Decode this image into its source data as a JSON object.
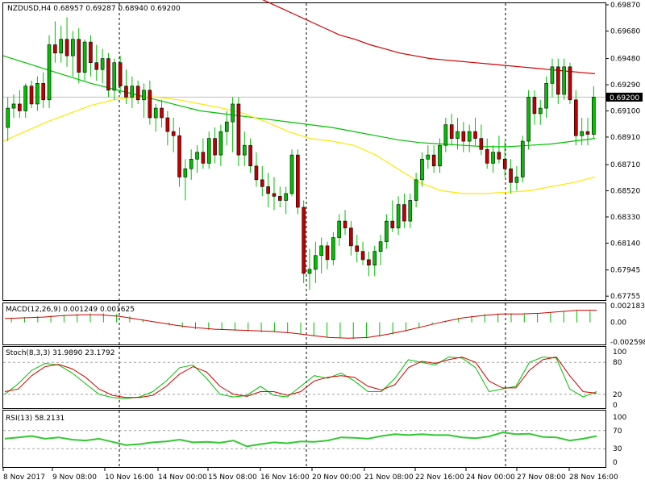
{
  "header": {
    "symbol_line": "NZDUSD,H4  0.68957 0.69287 0.68940 0.69200"
  },
  "colors": {
    "background": "#ffffff",
    "frame": "#000000",
    "grid": "#000000",
    "bull": "#00c000",
    "bear": "#c00000",
    "ma_fast": "#00c000",
    "ma_slow": "#d00000",
    "ma_yellow": "#ffe800",
    "price_line": "#c0c0c0",
    "current_price_bg": "#000000",
    "current_price_fg": "#ffffff",
    "macd_hist": "#00c000",
    "macd_signal": "#d00000",
    "stoch_main": "#00c000",
    "stoch_signal": "#d00000",
    "rsi": "#32c832"
  },
  "chart_data": [
    {
      "type": "candlestick",
      "title": "NZDUSD,H4",
      "ohlc_last": {
        "open": 0.68957,
        "high": 0.69287,
        "low": 0.6894,
        "close": 0.692
      },
      "current_price": "0.69200",
      "ylim": [
        0.6775,
        0.6987
      ],
      "y_ticks": [
        "0.69870",
        "0.69680",
        "0.69480",
        "0.69290",
        "0.69100",
        "0.68910",
        "0.68710",
        "0.68520",
        "0.68330",
        "0.68140",
        "0.67945",
        "0.67755"
      ],
      "x_ticks": [
        "8 Nov 2017",
        "9 Nov 08:00",
        "10 Nov 16:00",
        "14 Nov 00:00",
        "15 Nov 08:00",
        "16 Nov 16:00",
        "20 Nov 00:00",
        "21 Nov 08:00",
        "22 Nov 16:00",
        "24 Nov 00:00",
        "27 Nov 08:00",
        "28 Nov 16:00"
      ],
      "day_separators": [
        "10 Nov 16:00",
        "16 Nov 16:00",
        "24 Nov 00:00"
      ],
      "candles": [
        {
          "o": 0.6898,
          "h": 0.692,
          "l": 0.6888,
          "c": 0.6912
        },
        {
          "o": 0.6912,
          "h": 0.6922,
          "l": 0.6905,
          "c": 0.6915
        },
        {
          "o": 0.6915,
          "h": 0.6925,
          "l": 0.6905,
          "c": 0.691
        },
        {
          "o": 0.691,
          "h": 0.693,
          "l": 0.6905,
          "c": 0.6928
        },
        {
          "o": 0.6928,
          "h": 0.6932,
          "l": 0.6912,
          "c": 0.6915
        },
        {
          "o": 0.6915,
          "h": 0.6935,
          "l": 0.691,
          "c": 0.693
        },
        {
          "o": 0.693,
          "h": 0.6938,
          "l": 0.6912,
          "c": 0.6918
        },
        {
          "o": 0.6918,
          "h": 0.6965,
          "l": 0.6912,
          "c": 0.6958
        },
        {
          "o": 0.6958,
          "h": 0.6975,
          "l": 0.6945,
          "c": 0.6952
        },
        {
          "o": 0.6952,
          "h": 0.6972,
          "l": 0.6945,
          "c": 0.6962
        },
        {
          "o": 0.6962,
          "h": 0.6978,
          "l": 0.6942,
          "c": 0.695
        },
        {
          "o": 0.695,
          "h": 0.6968,
          "l": 0.6935,
          "c": 0.6962
        },
        {
          "o": 0.6962,
          "h": 0.697,
          "l": 0.693,
          "c": 0.6938
        },
        {
          "o": 0.6938,
          "h": 0.6962,
          "l": 0.6932,
          "c": 0.696
        },
        {
          "o": 0.696,
          "h": 0.6965,
          "l": 0.6935,
          "c": 0.6945
        },
        {
          "o": 0.6945,
          "h": 0.6958,
          "l": 0.6932,
          "c": 0.694
        },
        {
          "o": 0.694,
          "h": 0.6955,
          "l": 0.693,
          "c": 0.6948
        },
        {
          "o": 0.6948,
          "h": 0.6952,
          "l": 0.692,
          "c": 0.6925
        },
        {
          "o": 0.6925,
          "h": 0.6948,
          "l": 0.6918,
          "c": 0.6945
        },
        {
          "o": 0.6945,
          "h": 0.695,
          "l": 0.6922,
          "c": 0.6928
        },
        {
          "o": 0.6928,
          "h": 0.694,
          "l": 0.6915,
          "c": 0.692
        },
        {
          "o": 0.692,
          "h": 0.6935,
          "l": 0.6912,
          "c": 0.6928
        },
        {
          "o": 0.6928,
          "h": 0.6932,
          "l": 0.6915,
          "c": 0.6918
        },
        {
          "o": 0.6918,
          "h": 0.693,
          "l": 0.6905,
          "c": 0.6925
        },
        {
          "o": 0.6925,
          "h": 0.6932,
          "l": 0.69,
          "c": 0.6905
        },
        {
          "o": 0.6905,
          "h": 0.6915,
          "l": 0.6895,
          "c": 0.6912
        },
        {
          "o": 0.6912,
          "h": 0.6918,
          "l": 0.6898,
          "c": 0.6905
        },
        {
          "o": 0.6905,
          "h": 0.691,
          "l": 0.6885,
          "c": 0.6895
        },
        {
          "o": 0.6895,
          "h": 0.6905,
          "l": 0.688,
          "c": 0.6892
        },
        {
          "o": 0.6892,
          "h": 0.6898,
          "l": 0.6855,
          "c": 0.6862
        },
        {
          "o": 0.6862,
          "h": 0.6875,
          "l": 0.6845,
          "c": 0.6868
        },
        {
          "o": 0.6868,
          "h": 0.6882,
          "l": 0.686,
          "c": 0.6875
        },
        {
          "o": 0.6875,
          "h": 0.6885,
          "l": 0.6865,
          "c": 0.688
        },
        {
          "o": 0.688,
          "h": 0.689,
          "l": 0.6868,
          "c": 0.6872
        },
        {
          "o": 0.6872,
          "h": 0.6895,
          "l": 0.6868,
          "c": 0.689
        },
        {
          "o": 0.689,
          "h": 0.6898,
          "l": 0.6872,
          "c": 0.6878
        },
        {
          "o": 0.6878,
          "h": 0.69,
          "l": 0.687,
          "c": 0.6895
        },
        {
          "o": 0.6895,
          "h": 0.691,
          "l": 0.6885,
          "c": 0.6902
        },
        {
          "o": 0.6902,
          "h": 0.692,
          "l": 0.688,
          "c": 0.6915
        },
        {
          "o": 0.6915,
          "h": 0.692,
          "l": 0.687,
          "c": 0.6878
        },
        {
          "o": 0.6878,
          "h": 0.6895,
          "l": 0.687,
          "c": 0.6885
        },
        {
          "o": 0.6885,
          "h": 0.689,
          "l": 0.6865,
          "c": 0.687
        },
        {
          "o": 0.687,
          "h": 0.688,
          "l": 0.6855,
          "c": 0.686
        },
        {
          "o": 0.686,
          "h": 0.687,
          "l": 0.6848,
          "c": 0.6855
        },
        {
          "o": 0.6855,
          "h": 0.6865,
          "l": 0.684,
          "c": 0.685
        },
        {
          "o": 0.685,
          "h": 0.6862,
          "l": 0.6838,
          "c": 0.6848
        },
        {
          "o": 0.6848,
          "h": 0.6855,
          "l": 0.684,
          "c": 0.6845
        },
        {
          "o": 0.6845,
          "h": 0.6855,
          "l": 0.6835,
          "c": 0.685
        },
        {
          "o": 0.685,
          "h": 0.6882,
          "l": 0.6848,
          "c": 0.6878
        },
        {
          "o": 0.6878,
          "h": 0.6882,
          "l": 0.6835,
          "c": 0.684
        },
        {
          "o": 0.684,
          "h": 0.6845,
          "l": 0.6785,
          "c": 0.6792
        },
        {
          "o": 0.6792,
          "h": 0.681,
          "l": 0.678,
          "c": 0.6795
        },
        {
          "o": 0.6795,
          "h": 0.6815,
          "l": 0.6785,
          "c": 0.6805
        },
        {
          "o": 0.6805,
          "h": 0.6818,
          "l": 0.6792,
          "c": 0.6812
        },
        {
          "o": 0.6812,
          "h": 0.6815,
          "l": 0.6795,
          "c": 0.6802
        },
        {
          "o": 0.6802,
          "h": 0.6822,
          "l": 0.6798,
          "c": 0.6818
        },
        {
          "o": 0.6818,
          "h": 0.6835,
          "l": 0.6812,
          "c": 0.683
        },
        {
          "o": 0.683,
          "h": 0.6838,
          "l": 0.682,
          "c": 0.6825
        },
        {
          "o": 0.6825,
          "h": 0.683,
          "l": 0.6805,
          "c": 0.6812
        },
        {
          "o": 0.6812,
          "h": 0.682,
          "l": 0.68,
          "c": 0.6808
        },
        {
          "o": 0.6808,
          "h": 0.6815,
          "l": 0.6798,
          "c": 0.6802
        },
        {
          "o": 0.6802,
          "h": 0.6808,
          "l": 0.679,
          "c": 0.6798
        },
        {
          "o": 0.6798,
          "h": 0.6812,
          "l": 0.679,
          "c": 0.6808
        },
        {
          "o": 0.6808,
          "h": 0.682,
          "l": 0.6798,
          "c": 0.6815
        },
        {
          "o": 0.6815,
          "h": 0.6835,
          "l": 0.681,
          "c": 0.683
        },
        {
          "o": 0.683,
          "h": 0.6845,
          "l": 0.6822,
          "c": 0.6825
        },
        {
          "o": 0.6825,
          "h": 0.6848,
          "l": 0.682,
          "c": 0.6842
        },
        {
          "o": 0.6842,
          "h": 0.685,
          "l": 0.6825,
          "c": 0.683
        },
        {
          "o": 0.683,
          "h": 0.685,
          "l": 0.6825,
          "c": 0.6845
        },
        {
          "o": 0.6845,
          "h": 0.6865,
          "l": 0.684,
          "c": 0.686
        },
        {
          "o": 0.686,
          "h": 0.688,
          "l": 0.6855,
          "c": 0.6875
        },
        {
          "o": 0.6875,
          "h": 0.6885,
          "l": 0.6868,
          "c": 0.6878
        },
        {
          "o": 0.6878,
          "h": 0.6885,
          "l": 0.6865,
          "c": 0.687
        },
        {
          "o": 0.687,
          "h": 0.689,
          "l": 0.6865,
          "c": 0.6885
        },
        {
          "o": 0.6885,
          "h": 0.6905,
          "l": 0.688,
          "c": 0.69
        },
        {
          "o": 0.69,
          "h": 0.6908,
          "l": 0.6885,
          "c": 0.689
        },
        {
          "o": 0.689,
          "h": 0.6905,
          "l": 0.6882,
          "c": 0.6895
        },
        {
          "o": 0.6895,
          "h": 0.6902,
          "l": 0.688,
          "c": 0.6888
        },
        {
          "o": 0.6888,
          "h": 0.69,
          "l": 0.688,
          "c": 0.6895
        },
        {
          "o": 0.6895,
          "h": 0.6905,
          "l": 0.6885,
          "c": 0.689
        },
        {
          "o": 0.689,
          "h": 0.69,
          "l": 0.6878,
          "c": 0.6882
        },
        {
          "o": 0.6882,
          "h": 0.689,
          "l": 0.6868,
          "c": 0.6872
        },
        {
          "o": 0.6872,
          "h": 0.6885,
          "l": 0.6865,
          "c": 0.688
        },
        {
          "o": 0.688,
          "h": 0.6892,
          "l": 0.6872,
          "c": 0.6875
        },
        {
          "o": 0.6875,
          "h": 0.6888,
          "l": 0.6862,
          "c": 0.6868
        },
        {
          "o": 0.6868,
          "h": 0.6875,
          "l": 0.685,
          "c": 0.6858
        },
        {
          "o": 0.6858,
          "h": 0.687,
          "l": 0.6852,
          "c": 0.6862
        },
        {
          "o": 0.6862,
          "h": 0.6892,
          "l": 0.6858,
          "c": 0.6888
        },
        {
          "o": 0.6888,
          "h": 0.6925,
          "l": 0.6882,
          "c": 0.692
        },
        {
          "o": 0.692,
          "h": 0.6925,
          "l": 0.69,
          "c": 0.6908
        },
        {
          "o": 0.6908,
          "h": 0.6918,
          "l": 0.69,
          "c": 0.6912
        },
        {
          "o": 0.6912,
          "h": 0.6935,
          "l": 0.6905,
          "c": 0.693
        },
        {
          "o": 0.693,
          "h": 0.6948,
          "l": 0.692,
          "c": 0.6942
        },
        {
          "o": 0.6942,
          "h": 0.6948,
          "l": 0.6915,
          "c": 0.6922
        },
        {
          "o": 0.6922,
          "h": 0.6948,
          "l": 0.6918,
          "c": 0.6942
        },
        {
          "o": 0.6942,
          "h": 0.6945,
          "l": 0.6915,
          "c": 0.6918
        },
        {
          "o": 0.6918,
          "h": 0.6925,
          "l": 0.6885,
          "c": 0.6892
        },
        {
          "o": 0.6892,
          "h": 0.6905,
          "l": 0.6885,
          "c": 0.6895
        },
        {
          "o": 0.6895,
          "h": 0.6905,
          "l": 0.6885,
          "c": 0.6893
        },
        {
          "o": 0.6893,
          "h": 0.6928,
          "l": 0.689,
          "c": 0.692
        }
      ],
      "ma_fast": [
        0.695,
        0.6945,
        0.694,
        0.6935,
        0.693,
        0.6926,
        0.6922,
        0.6918,
        0.6914,
        0.691,
        0.6908,
        0.6906,
        0.6904,
        0.6902,
        0.69,
        0.6898,
        0.6895,
        0.6892,
        0.6889,
        0.6887,
        0.6886,
        0.6885,
        0.6884,
        0.6884,
        0.6885,
        0.6886,
        0.6888,
        0.689
      ],
      "ma_slow": [
        0.6995,
        0.699,
        0.6985,
        0.698,
        0.6975,
        0.697,
        0.6965,
        0.6962,
        0.6958,
        0.6955,
        0.6952,
        0.695,
        0.6948,
        0.6947,
        0.6946,
        0.6945,
        0.6944,
        0.6943,
        0.6942,
        0.6941,
        0.694,
        0.6939,
        0.6938,
        0.6937
      ],
      "ma_yellow": [
        0.6888,
        0.6895,
        0.6902,
        0.6908,
        0.6914,
        0.6918,
        0.692,
        0.692,
        0.6918,
        0.6915,
        0.6912,
        0.6908,
        0.6902,
        0.6895,
        0.689,
        0.6888,
        0.6885,
        0.6878,
        0.6868,
        0.6858,
        0.6852,
        0.685,
        0.685,
        0.6851,
        0.6852,
        0.6855,
        0.6858,
        0.6862
      ]
    },
    {
      "type": "bar",
      "title": "MACD(12,26,9) 0.001249 0.001625",
      "y_ticks": [
        "0.002183",
        "0.00",
        "-0.002598"
      ],
      "ylim": [
        -0.0026,
        0.0022
      ]
    },
    {
      "type": "line",
      "title": "Stoch(8,3,3) 31.9890 23.1792",
      "y_ticks": [
        "100",
        "80",
        "20",
        "0"
      ],
      "ylim": [
        0,
        100
      ],
      "main": [
        20,
        40,
        65,
        78,
        75,
        60,
        40,
        20,
        14,
        12,
        15,
        25,
        45,
        70,
        75,
        50,
        20,
        15,
        18,
        35,
        18,
        15,
        35,
        55,
        50,
        60,
        45,
        25,
        25,
        50,
        85,
        80,
        75,
        90,
        88,
        70,
        25,
        30,
        35,
        80,
        90,
        88,
        30,
        15,
        25
      ],
      "signal": [
        25,
        30,
        55,
        72,
        76,
        68,
        52,
        30,
        18,
        14,
        14,
        18,
        35,
        58,
        72,
        62,
        35,
        20,
        16,
        25,
        25,
        18,
        25,
        45,
        52,
        55,
        52,
        35,
        28,
        38,
        70,
        82,
        78,
        85,
        90,
        80,
        45,
        32,
        32,
        65,
        85,
        90,
        55,
        25,
        22
      ]
    },
    {
      "type": "line",
      "title": "RSI(13) 58.2131",
      "y_ticks": [
        "100",
        "70",
        "30",
        "0"
      ],
      "ylim": [
        0,
        100
      ],
      "values": [
        52,
        55,
        58,
        52,
        55,
        50,
        48,
        52,
        45,
        38,
        40,
        44,
        46,
        50,
        44,
        45,
        43,
        48,
        35,
        40,
        44,
        42,
        46,
        45,
        48,
        55,
        54,
        52,
        58,
        62,
        60,
        62,
        60,
        60,
        55,
        53,
        57,
        66,
        62,
        63,
        56,
        55,
        48,
        52,
        58
      ]
    }
  ]
}
